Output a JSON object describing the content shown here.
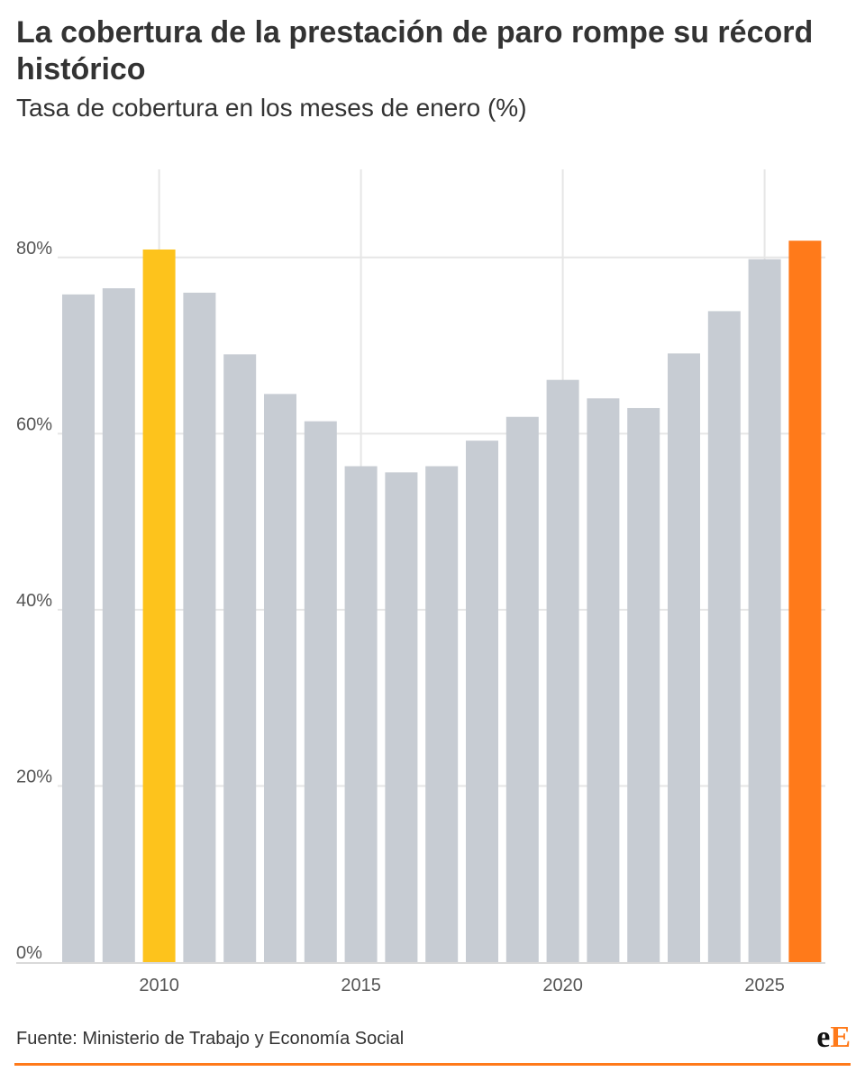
{
  "title": "La cobertura de la prestación de paro rompe su récord histórico",
  "subtitle": "Tasa de cobertura en los meses de enero (%)",
  "footer": {
    "source": "Fuente: Ministerio de Trabajo y Economía Social",
    "logo_part1": "e",
    "logo_part2": "E"
  },
  "colors": {
    "bar_default": "#c7ccd3",
    "bar_highlight_2010": "#fdc31c",
    "bar_highlight_2026": "#ff7a1a",
    "grid": "#e6e6e6",
    "accent": "#ff7a1a"
  },
  "chart_data": {
    "type": "bar",
    "x": [
      2008,
      2009,
      2010,
      2011,
      2012,
      2013,
      2014,
      2015,
      2016,
      2017,
      2018,
      2019,
      2020,
      2021,
      2022,
      2023,
      2024,
      2025,
      2026
    ],
    "values": [
      75.8,
      76.5,
      80.9,
      76.0,
      69.0,
      64.5,
      61.4,
      56.3,
      55.6,
      56.3,
      59.2,
      61.9,
      66.1,
      64.0,
      62.9,
      69.1,
      73.9,
      79.8,
      81.9
    ],
    "highlights": {
      "2010": "#fdc31c",
      "2026": "#ff7a1a"
    },
    "xticks": [
      2010,
      2015,
      2020,
      2025
    ],
    "xtick_labels": [
      "2010",
      "2015",
      "2020",
      "2025"
    ],
    "yticks": [
      0,
      20,
      40,
      60,
      80
    ],
    "ytick_labels": [
      "0%",
      "20%",
      "40%",
      "60%",
      "80%"
    ],
    "ylim": [
      0,
      90
    ],
    "xlabel": "",
    "ylabel": "",
    "grid": true
  }
}
